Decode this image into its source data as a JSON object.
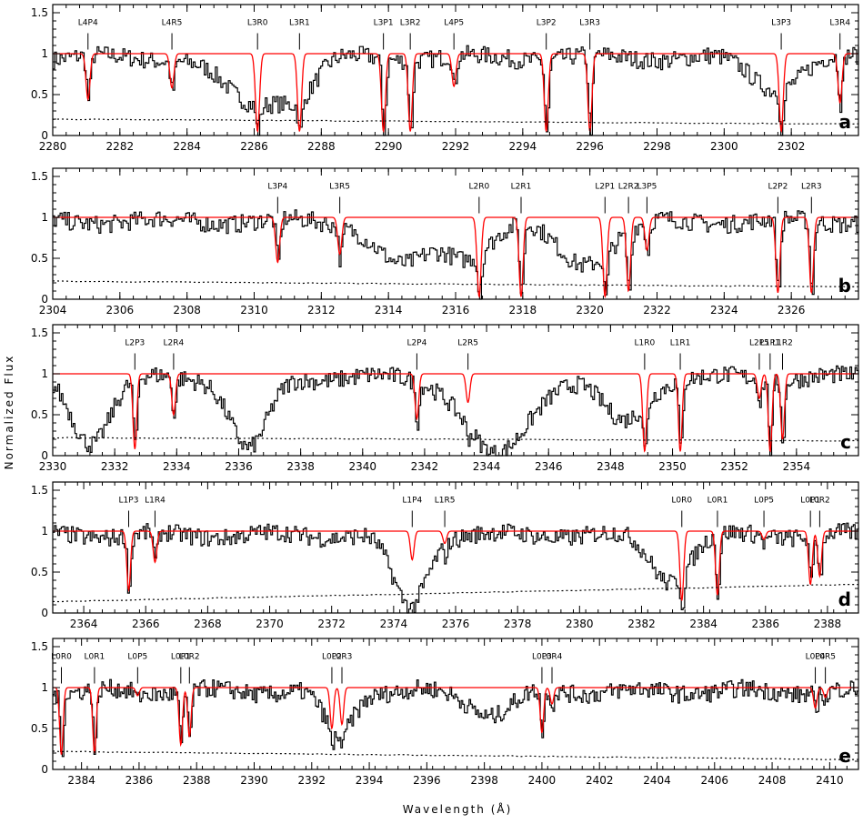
{
  "chart_data": {
    "type": "line",
    "xlabel": "Wavelength (Å)",
    "ylabel": "Normalized Flux",
    "colors": {
      "data": "#000000",
      "model": "#ff0000",
      "error": "#000000"
    },
    "panels": [
      {
        "letter": "a",
        "xlim": [
          2280,
          2304
        ],
        "ylim": [
          0,
          1.6
        ],
        "x_ticks": [
          "2280",
          "2282",
          "2284",
          "2286",
          "2288",
          "2290",
          "2292",
          "2294",
          "2296",
          "2298",
          "2300",
          "2302"
        ],
        "y_ticks": [
          "0",
          "0.5",
          "1",
          "1.5"
        ],
        "lines": [
          {
            "label": "L4P4",
            "x": 2281.05,
            "depth": 0.56
          },
          {
            "label": "L4R5",
            "x": 2283.55,
            "depth": 0.42
          },
          {
            "label": "L3R0",
            "x": 2286.1,
            "depth": 0.95
          },
          {
            "label": "L3R1",
            "x": 2287.35,
            "depth": 0.95
          },
          {
            "label": "L3P1",
            "x": 2289.85,
            "depth": 0.95
          },
          {
            "label": "L3R2",
            "x": 2290.65,
            "depth": 0.95
          },
          {
            "label": "L4P5",
            "x": 2291.95,
            "depth": 0.4
          },
          {
            "label": "L3P2",
            "x": 2294.7,
            "depth": 0.95
          },
          {
            "label": "L3R3",
            "x": 2296.0,
            "depth": 0.95
          },
          {
            "label": "L3P3",
            "x": 2301.7,
            "depth": 0.95
          },
          {
            "label": "L3R4",
            "x": 2303.45,
            "depth": 0.6
          }
        ],
        "broad": [
          {
            "x": 2286.0,
            "depth": 0.6,
            "width": 0.9
          },
          {
            "x": 2287.25,
            "depth": 0.45,
            "width": 0.5
          },
          {
            "x": 2301.5,
            "depth": 0.4,
            "width": 0.7
          }
        ],
        "error_level": [
          0.2,
          0.14
        ]
      },
      {
        "letter": "b",
        "xlim": [
          2304,
          2328
        ],
        "ylim": [
          0,
          1.6
        ],
        "x_ticks": [
          "2304",
          "2306",
          "2308",
          "2310",
          "2312",
          "2314",
          "2316",
          "2318",
          "2320",
          "2322",
          "2324",
          "2326"
        ],
        "y_ticks": [
          "0",
          "0.5",
          "1",
          "1.5"
        ],
        "lines": [
          {
            "label": "L3P4",
            "x": 2310.7,
            "depth": 0.55
          },
          {
            "label": "L3R5",
            "x": 2312.55,
            "depth": 0.45
          },
          {
            "label": "L2R0",
            "x": 2316.7,
            "depth": 0.97
          },
          {
            "label": "L2R1",
            "x": 2317.95,
            "depth": 0.97
          },
          {
            "label": "L2P1",
            "x": 2320.45,
            "depth": 0.97
          },
          {
            "label": "L2R2",
            "x": 2321.15,
            "depth": 0.9
          },
          {
            "label": "L3P5",
            "x": 2321.7,
            "depth": 0.4
          },
          {
            "label": "L2P2",
            "x": 2325.6,
            "depth": 0.92
          },
          {
            "label": "L2R3",
            "x": 2326.6,
            "depth": 0.92
          }
        ],
        "broad": [
          {
            "x": 2314.4,
            "depth": 0.55,
            "width": 0.8
          },
          {
            "x": 2316.3,
            "depth": 0.45,
            "width": 0.7
          },
          {
            "x": 2319.8,
            "depth": 0.55,
            "width": 0.8
          }
        ],
        "error_level": [
          0.22,
          0.15
        ]
      },
      {
        "letter": "c",
        "xlim": [
          2330,
          2356
        ],
        "ylim": [
          0,
          1.6
        ],
        "x_ticks": [
          "2330",
          "2332",
          "2334",
          "2336",
          "2338",
          "2340",
          "2342",
          "2344",
          "2346",
          "2348",
          "2350",
          "2352",
          "2354"
        ],
        "y_ticks": [
          "0",
          "0.5",
          "1",
          "1.5"
        ],
        "lines": [
          {
            "label": "L2P3",
            "x": 2332.65,
            "depth": 0.92
          },
          {
            "label": "L2R4",
            "x": 2333.9,
            "depth": 0.5
          },
          {
            "label": "L2P4",
            "x": 2341.75,
            "depth": 0.55
          },
          {
            "label": "L2R5",
            "x": 2343.4,
            "depth": 0.35
          },
          {
            "label": "L1R0",
            "x": 2349.1,
            "depth": 0.95
          },
          {
            "label": "L1R1",
            "x": 2350.25,
            "depth": 0.95
          },
          {
            "label": "L2P5",
            "x": 2352.8,
            "depth": 0.3
          },
          {
            "label": "L1P1",
            "x": 2353.15,
            "depth": 0.95
          },
          {
            "label": "L1R2",
            "x": 2353.55,
            "depth": 0.8
          }
        ],
        "broad": [
          {
            "x": 2331.2,
            "depth": 0.85,
            "width": 0.6
          },
          {
            "x": 2336.3,
            "depth": 0.9,
            "width": 0.6
          },
          {
            "x": 2344.3,
            "depth": 0.97,
            "width": 1.0
          },
          {
            "x": 2348.4,
            "depth": 0.55,
            "width": 0.7
          }
        ],
        "error_level": [
          0.22,
          0.18
        ]
      },
      {
        "letter": "d",
        "xlim": [
          2363,
          2389
        ],
        "ylim": [
          0,
          1.6
        ],
        "x_ticks": [
          "2364",
          "2366",
          "2368",
          "2370",
          "2372",
          "2374",
          "2376",
          "2378",
          "2380",
          "2382",
          "2384",
          "2386",
          "2388"
        ],
        "y_ticks": [
          "0",
          "0.5",
          "1",
          "1.5"
        ],
        "lines": [
          {
            "label": "L1P3",
            "x": 2365.45,
            "depth": 0.72
          },
          {
            "label": "L1R4",
            "x": 2366.3,
            "depth": 0.38
          },
          {
            "label": "L1P4",
            "x": 2374.6,
            "depth": 0.35
          },
          {
            "label": "L1R5",
            "x": 2375.65,
            "depth": 0.15
          },
          {
            "label": "L0R0",
            "x": 2383.3,
            "depth": 0.85
          },
          {
            "label": "L0R1",
            "x": 2384.45,
            "depth": 0.78
          },
          {
            "label": "L0P5",
            "x": 2385.95,
            "depth": 0.1
          },
          {
            "label": "L0P1",
            "x": 2387.45,
            "depth": 0.65
          },
          {
            "label": "L0R2",
            "x": 2387.75,
            "depth": 0.55
          }
        ],
        "broad": [
          {
            "x": 2374.5,
            "depth": 0.9,
            "width": 0.55
          },
          {
            "x": 2382.9,
            "depth": 0.6,
            "width": 0.6
          }
        ],
        "error_level": [
          0.14,
          0.35
        ]
      },
      {
        "letter": "e",
        "xlim": [
          2383,
          2411
        ],
        "ylim": [
          0,
          1.6
        ],
        "x_ticks": [
          "2384",
          "2386",
          "2388",
          "2390",
          "2392",
          "2394",
          "2396",
          "2398",
          "2400",
          "2402",
          "2404",
          "2406",
          "2408",
          "2410"
        ],
        "y_ticks": [
          "0",
          "0.5",
          "1",
          "1.5"
        ],
        "lines": [
          {
            "label": "L0R0",
            "x": 2383.3,
            "depth": 0.82
          },
          {
            "label": "L0R1",
            "x": 2384.45,
            "depth": 0.8
          },
          {
            "label": "L0P5",
            "x": 2385.95,
            "depth": 0.1
          },
          {
            "label": "L0P1",
            "x": 2387.45,
            "depth": 0.7
          },
          {
            "label": "L0R2",
            "x": 2387.75,
            "depth": 0.6
          },
          {
            "label": "L0P2",
            "x": 2392.7,
            "depth": 0.5
          },
          {
            "label": "L0R3",
            "x": 2393.05,
            "depth": 0.45
          },
          {
            "label": "L0P3",
            "x": 2400.0,
            "depth": 0.55
          },
          {
            "label": "L0R4",
            "x": 2400.35,
            "depth": 0.2
          },
          {
            "label": "L0P4",
            "x": 2409.5,
            "depth": 0.25
          },
          {
            "label": "L0R5",
            "x": 2409.85,
            "depth": 0.12
          }
        ],
        "broad": [
          {
            "x": 2392.9,
            "depth": 0.55,
            "width": 0.5
          },
          {
            "x": 2398.2,
            "depth": 0.3,
            "width": 0.7
          }
        ],
        "error_level": [
          0.22,
          0.12
        ]
      }
    ]
  }
}
